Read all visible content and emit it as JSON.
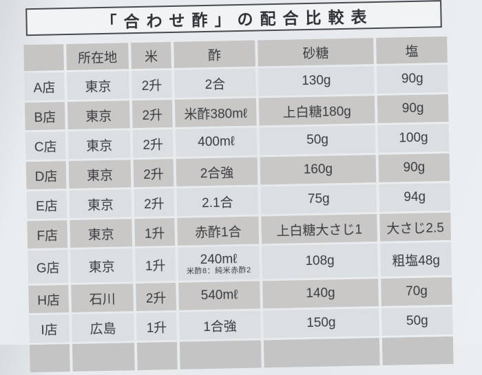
{
  "page": {
    "title": "「合わせ酢」の配合比較表"
  },
  "table": {
    "column_headers": [
      "",
      "所在地",
      "米",
      "酢",
      "砂糖",
      "塩"
    ],
    "rows": [
      {
        "store": "A店",
        "location": "東京",
        "rice": "2升",
        "vinegar": "2合",
        "vinegar_note": "",
        "sugar": "130g",
        "salt": "90g"
      },
      {
        "store": "B店",
        "location": "東京",
        "rice": "2升",
        "vinegar": "米酢380mℓ",
        "vinegar_note": "",
        "sugar": "上白糖180g",
        "salt": "90g"
      },
      {
        "store": "C店",
        "location": "東京",
        "rice": "2升",
        "vinegar": "400mℓ",
        "vinegar_note": "",
        "sugar": "50g",
        "salt": "100g"
      },
      {
        "store": "D店",
        "location": "東京",
        "rice": "2升",
        "vinegar": "2合強",
        "vinegar_note": "",
        "sugar": "160g",
        "salt": "90g"
      },
      {
        "store": "E店",
        "location": "東京",
        "rice": "2升",
        "vinegar": "2.1合",
        "vinegar_note": "",
        "sugar": "75g",
        "salt": "94g"
      },
      {
        "store": "F店",
        "location": "東京",
        "rice": "1升",
        "vinegar": "赤酢1合",
        "vinegar_note": "",
        "sugar": "上白糖大さじ1",
        "salt": "大さじ2.5"
      },
      {
        "store": "G店",
        "location": "東京",
        "rice": "1升",
        "vinegar": "240mℓ",
        "vinegar_note": "米酢8：純米赤酢2",
        "sugar": "108g",
        "salt": "粗塩48g"
      },
      {
        "store": "H店",
        "location": "石川",
        "rice": "2升",
        "vinegar": "540mℓ",
        "vinegar_note": "",
        "sugar": "140g",
        "salt": "70g"
      },
      {
        "store": "I店",
        "location": "広島",
        "rice": "1升",
        "vinegar": "1合強",
        "vinegar_note": "",
        "sugar": "150g",
        "salt": "50g"
      }
    ]
  }
}
